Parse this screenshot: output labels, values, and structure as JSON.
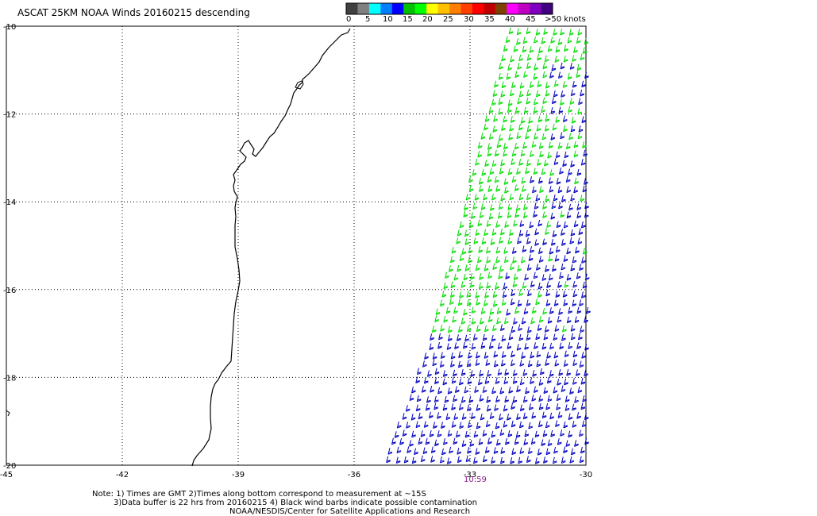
{
  "header": {
    "title": "ASCAT 25KM NOAA Winds 20160215 descending"
  },
  "color_scale": {
    "labels": [
      "0",
      "5",
      "10",
      "15",
      "20",
      "25",
      "30",
      "35",
      "40",
      "45",
      ">50 knots"
    ],
    "colors": [
      "#404040",
      "#808080",
      "#00ffff",
      "#0080ff",
      "#0000ff",
      "#00c000",
      "#00ff00",
      "#ffff00",
      "#ffc000",
      "#ff8000",
      "#ff4000",
      "#ff0000",
      "#c00000",
      "#804000",
      "#ff00ff",
      "#c000c0",
      "#8000c0",
      "#400080"
    ]
  },
  "axes": {
    "lat_labels": [
      "-10",
      "-12",
      "-14",
      "-16",
      "-18",
      "-20"
    ],
    "lat_values": [
      -10,
      -12,
      -14,
      -16,
      -18,
      -20
    ],
    "lon_labels": [
      "-45",
      "-42",
      "-39",
      "-36",
      "-33",
      "-30"
    ],
    "lon_values": [
      -45,
      -42,
      -39,
      -36,
      -33,
      -30
    ]
  },
  "swath": {
    "time_label": "10:59",
    "time_color": "#8b1a8b",
    "barb_colors": {
      "light": "#00dd00",
      "strong": "#0000c0"
    }
  },
  "notes": {
    "line1": "Note: 1) Times are GMT 2)Times along bottom correspond to measurement at ~15S",
    "line2": "3)Data buffer is 22 hrs from 20160215 4) Black wind barbs indicate possible contamination",
    "credit": "NOAA/NESDIS/Center for Satellite Applications and Research"
  }
}
